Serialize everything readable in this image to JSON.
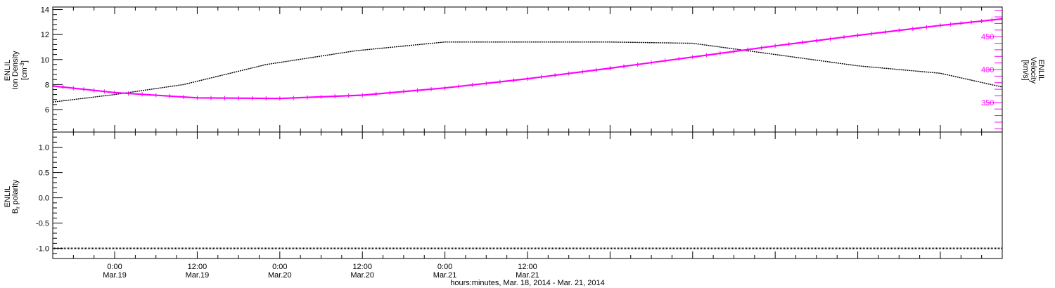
{
  "chart_data": [
    {
      "type": "line",
      "panel": "top",
      "left_axis": {
        "label_line1": "ENLIL",
        "label_line2": "Ion Density",
        "unit_main": "[cm",
        "unit_sup": "-3",
        "unit_close": "]",
        "ylim": [
          4.2,
          14.2
        ],
        "ticks": [
          6,
          8,
          10,
          12,
          14
        ],
        "tick_labels": [
          "6",
          "8",
          "10",
          "12",
          "14"
        ],
        "color": "#000000"
      },
      "right_axis": {
        "label_line1": "ENLIL",
        "label_line2": "Velocity",
        "unit": "[km/s]",
        "ylim": [
          305,
          495
        ],
        "ticks": [
          350,
          400,
          450
        ],
        "tick_labels": [
          "350",
          "400",
          "450"
        ],
        "color": "#ff00ff"
      },
      "series": [
        {
          "axis": "left",
          "color": "#000000",
          "x": [
            -9,
            0,
            10,
            22,
            35,
            48,
            60,
            72,
            84,
            96,
            108,
            120,
            129
          ],
          "values": [
            6.6,
            7.2,
            8.0,
            9.6,
            10.7,
            11.4,
            11.4,
            11.4,
            11.3,
            10.4,
            9.5,
            8.9,
            7.8
          ]
        },
        {
          "axis": "right",
          "color": "#ff00ff",
          "x": [
            -9,
            0,
            12,
            24,
            36,
            48,
            60,
            72,
            84,
            96,
            108,
            120,
            129
          ],
          "values": [
            375,
            365,
            357,
            356,
            361,
            372,
            386,
            402,
            419,
            436,
            452,
            467,
            477
          ]
        }
      ]
    },
    {
      "type": "line",
      "panel": "bottom",
      "left_axis": {
        "label_line1": "ENLIL",
        "label_line2": "B",
        "label_sub": "r",
        "label_rest": " polarity",
        "ylim": [
          -1.2,
          1.3
        ],
        "ticks": [
          -1.0,
          -0.5,
          0.0,
          0.5,
          1.0
        ],
        "tick_labels": [
          "-1.0",
          "-0.5",
          "0.0",
          "0.5",
          "1.0"
        ]
      },
      "series": [
        {
          "color": "#000000",
          "x": [
            -9,
            129
          ],
          "values": [
            -1.0,
            -1.0
          ]
        }
      ]
    }
  ],
  "x_axis": {
    "xlim": [
      -9,
      129
    ],
    "title": "hours:minutes, Mar. 18, 2014 - Mar. 21, 2014",
    "major": [
      {
        "x": 0,
        "time": "0:00",
        "date": "Mar.19"
      },
      {
        "x": 12,
        "time": "12:00",
        "date": "Mar.19"
      },
      {
        "x": 24,
        "time": "0:00",
        "date": "Mar.20"
      },
      {
        "x": 36,
        "time": "12:00",
        "date": "Mar.20"
      },
      {
        "x": 48,
        "time": "0:00",
        "date": "Mar.21"
      },
      {
        "x": 60,
        "time": "12:00",
        "date": "Mar.21"
      }
    ]
  }
}
